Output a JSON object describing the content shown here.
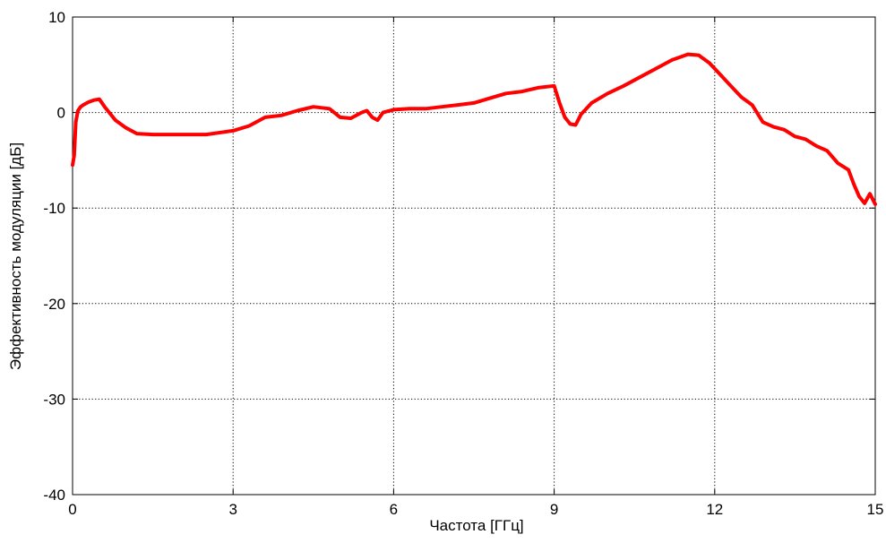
{
  "chart_data": {
    "type": "line",
    "title": "",
    "xlabel": "Частота [ГГц]",
    "ylabel": "Эффективность модуляции [дБ]",
    "xlim": [
      0,
      15
    ],
    "ylim": [
      -40,
      10
    ],
    "xticks": [
      0,
      3,
      6,
      9,
      12,
      15
    ],
    "yticks": [
      -40,
      -30,
      -20,
      -10,
      0,
      10
    ],
    "xtick_labels": [
      "0",
      "3",
      "6",
      "9",
      "12",
      "15"
    ],
    "ytick_labels": [
      "-40",
      "-30",
      "-20",
      "-10",
      "0",
      "10"
    ],
    "grid": true,
    "series": [
      {
        "color": "#ff0000",
        "x": [
          0.0,
          0.03,
          0.06,
          0.1,
          0.15,
          0.2,
          0.3,
          0.4,
          0.5,
          0.6,
          0.8,
          1.0,
          1.2,
          1.5,
          2.0,
          2.5,
          3.0,
          3.3,
          3.6,
          3.9,
          4.2,
          4.5,
          4.8,
          5.0,
          5.2,
          5.4,
          5.5,
          5.6,
          5.7,
          5.8,
          6.0,
          6.3,
          6.6,
          6.9,
          7.2,
          7.5,
          7.8,
          8.1,
          8.4,
          8.7,
          9.0,
          9.1,
          9.2,
          9.3,
          9.4,
          9.5,
          9.7,
          10.0,
          10.3,
          10.6,
          10.9,
          11.2,
          11.5,
          11.7,
          11.9,
          12.1,
          12.3,
          12.5,
          12.7,
          12.9,
          13.1,
          13.3,
          13.5,
          13.7,
          13.9,
          14.1,
          14.3,
          14.5,
          14.6,
          14.7,
          14.8,
          14.9,
          15.0
        ],
        "y": [
          -5.5,
          -4.5,
          -1.0,
          0.2,
          0.6,
          0.8,
          1.1,
          1.3,
          1.4,
          0.6,
          -0.8,
          -1.6,
          -2.2,
          -2.3,
          -2.3,
          -2.3,
          -1.9,
          -1.4,
          -0.5,
          -0.3,
          0.2,
          0.6,
          0.4,
          -0.5,
          -0.6,
          0.0,
          0.2,
          -0.5,
          -0.8,
          0.0,
          0.3,
          0.4,
          0.4,
          0.6,
          0.8,
          1.0,
          1.5,
          2.0,
          2.2,
          2.6,
          2.8,
          1.0,
          -0.5,
          -1.2,
          -1.3,
          -0.2,
          1.0,
          2.0,
          2.8,
          3.7,
          4.6,
          5.5,
          6.1,
          6.0,
          5.2,
          4.0,
          2.8,
          1.6,
          0.8,
          -1.0,
          -1.5,
          -1.8,
          -2.5,
          -2.8,
          -3.5,
          -4.0,
          -5.3,
          -6.0,
          -7.5,
          -8.8,
          -9.5,
          -8.5,
          -9.6
        ]
      }
    ]
  }
}
